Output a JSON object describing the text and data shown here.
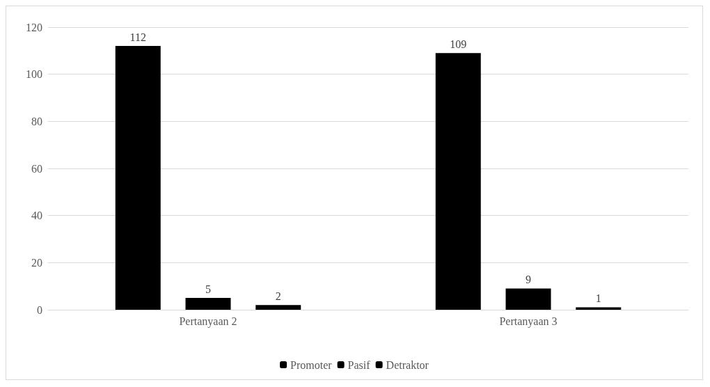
{
  "chart_data": {
    "type": "bar",
    "categories": [
      "Pertanyaan 2",
      "Pertanyaan 3"
    ],
    "series": [
      {
        "name": "Promoter",
        "color": "#000000",
        "values": [
          112,
          109
        ]
      },
      {
        "name": "Pasif",
        "color": "#000000",
        "values": [
          5,
          9
        ]
      },
      {
        "name": "Detraktor",
        "color": "#000000",
        "values": [
          2,
          1
        ]
      }
    ],
    "ylim": [
      0,
      120
    ],
    "yticks": [
      0,
      20,
      40,
      60,
      80,
      100,
      120
    ],
    "grid": "y",
    "legend": "bottom",
    "data_labels": true
  }
}
